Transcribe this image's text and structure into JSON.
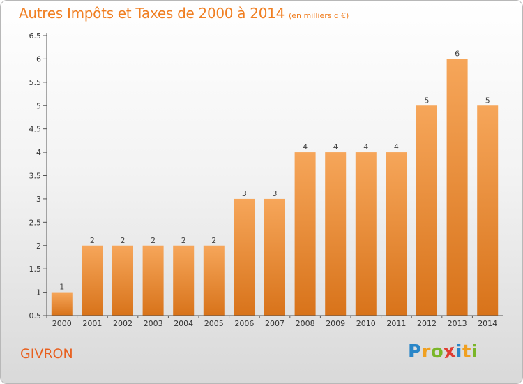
{
  "title": "Autres Impôts et Taxes de 2000 à 2014",
  "subtitle": "(en milliers d'€)",
  "commune": "GIVRON",
  "logo": {
    "letters": [
      "P",
      "r",
      "o",
      "x",
      "i",
      "t",
      "i"
    ],
    "colors": [
      "#2a86c8",
      "#f0a020",
      "#7ab629",
      "#e03c31",
      "#2a86c8",
      "#f0a020",
      "#7ab629"
    ]
  },
  "colors": {
    "accent": "#f07f22",
    "bar_top": "#f6a65a",
    "bar_bottom": "#d8731a",
    "axis": "#555555",
    "grid": "#cccccc"
  },
  "chart_data": {
    "type": "bar",
    "categories": [
      "2000",
      "2001",
      "2002",
      "2003",
      "2004",
      "2005",
      "2006",
      "2007",
      "2008",
      "2009",
      "2010",
      "2011",
      "2012",
      "2013",
      "2014"
    ],
    "values": [
      1,
      2,
      2,
      2,
      2,
      2,
      3,
      3,
      4,
      4,
      4,
      4,
      5,
      6,
      5
    ],
    "data_labels": [
      "1",
      "2",
      "2",
      "2",
      "2",
      "2",
      "3",
      "3",
      "4",
      "4",
      "4",
      "4",
      "5",
      "6",
      "5"
    ],
    "yticks": [
      "0.5",
      "1",
      "1.5",
      "2",
      "2.5",
      "3",
      "3.5",
      "4",
      "4.5",
      "5",
      "5.5",
      "6",
      "6.5"
    ],
    "ylim": [
      0.5,
      6.5
    ],
    "grid": false
  }
}
